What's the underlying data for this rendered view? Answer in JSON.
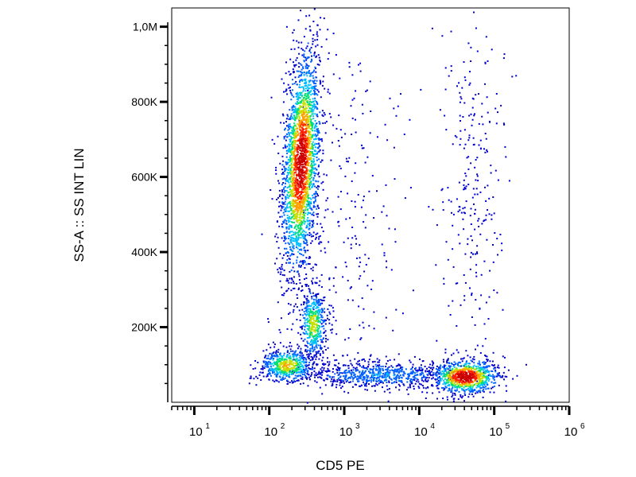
{
  "chart_data": {
    "type": "scatter",
    "subtype": "flow-cytometry-density-dot-plot",
    "xlabel": "CD5 PE",
    "ylabel": "SS-A :: SS INT LIN",
    "x_scale": "log",
    "xlim": [
      5,
      1000000
    ],
    "ylim": [
      0,
      1050000
    ],
    "y_ticks": [
      {
        "value": 200000,
        "label": "200K"
      },
      {
        "value": 400000,
        "label": "400K"
      },
      {
        "value": 600000,
        "label": "600K"
      },
      {
        "value": 800000,
        "label": "800K"
      },
      {
        "value": 1000000,
        "label": "1,0M"
      }
    ],
    "x_ticks": [
      {
        "value": 10,
        "base": "10",
        "exp": "1"
      },
      {
        "value": 100,
        "base": "10",
        "exp": "2"
      },
      {
        "value": 1000,
        "base": "10",
        "exp": "3"
      },
      {
        "value": 10000,
        "base": "10",
        "exp": "4"
      },
      {
        "value": 100000,
        "base": "10",
        "exp": "5"
      },
      {
        "value": 1000000,
        "base": "10",
        "exp": "6"
      }
    ],
    "grid": false,
    "legend": "none",
    "colormap": [
      "#0000cc",
      "#0060ff",
      "#00c0ff",
      "#00e070",
      "#c8e000",
      "#ffa000",
      "#ff2000",
      "#cc0000"
    ],
    "populations": [
      {
        "center": {
          "x": 260,
          "y": 640000
        },
        "count": 2400,
        "spread_log_x": 0.12,
        "spread_y": 150000,
        "tilt": 0.35,
        "peak": 0.95
      },
      {
        "center": {
          "x": 380,
          "y": 210000
        },
        "count": 450,
        "spread_log_x": 0.09,
        "spread_y": 45000,
        "tilt": 0,
        "peak": 0.55
      },
      {
        "center": {
          "x": 170,
          "y": 100000
        },
        "count": 550,
        "spread_log_x": 0.18,
        "spread_y": 22000,
        "tilt": 0,
        "peak": 0.6
      },
      {
        "center": {
          "x": 40000,
          "y": 70000
        },
        "count": 900,
        "spread_log_x": 0.22,
        "spread_y": 22000,
        "tilt": 0,
        "peak": 1.0
      },
      {
        "center": {
          "x": 3000,
          "y": 75000
        },
        "count": 700,
        "spread_log_x": 0.55,
        "spread_y": 18000,
        "tilt": 0,
        "peak": 0.2
      },
      {
        "center": {
          "x": 50000,
          "y": 560000
        },
        "count": 260,
        "spread_log_x": 0.2,
        "spread_y": 230000,
        "tilt": 0,
        "peak": 0.0
      },
      {
        "center": {
          "x": 1000,
          "y": 420000
        },
        "count": 320,
        "spread_log_x": 0.45,
        "spread_y": 300000,
        "tilt": 0,
        "peak": 0.0
      }
    ]
  }
}
